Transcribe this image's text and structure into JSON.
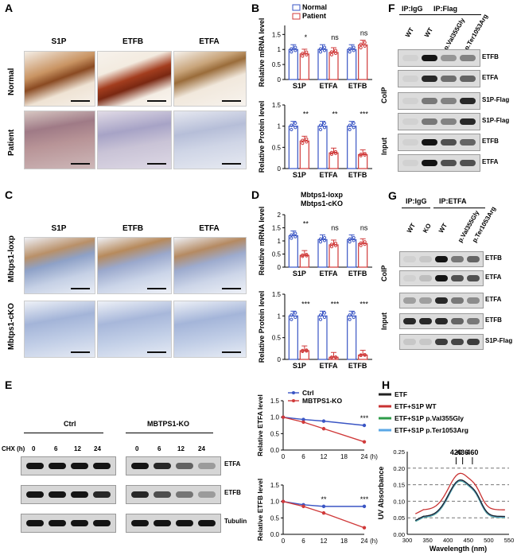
{
  "panels": {
    "A": {
      "label": "A",
      "cols": [
        "S1P",
        "ETFB",
        "ETFA"
      ],
      "rows": [
        "Normal",
        "Patient"
      ]
    },
    "B": {
      "label": "B"
    },
    "C": {
      "label": "C",
      "cols": [
        "S1P",
        "ETFB",
        "ETFA"
      ],
      "rows": [
        "Mbtps1-loxp",
        "Mbtps1-cKO"
      ]
    },
    "D": {
      "label": "D"
    },
    "E": {
      "label": "E",
      "group1": "Ctrl",
      "group2": "MBTPS1-KO",
      "chx": "CHX (h)",
      "times": [
        "0",
        "6",
        "12",
        "24"
      ],
      "bands": [
        "ETFA",
        "ETFB",
        "Tubulin"
      ]
    },
    "F": {
      "label": "F",
      "ip1": "IP:IgG",
      "ip2": "IP:Flag",
      "lanes": [
        "WT",
        "WT",
        "p.Val355Gly",
        "p.Ter1053Arg"
      ],
      "coip": "CoIP",
      "input": "Input",
      "bands": [
        "ETFB",
        "ETFA",
        "S1P-Flag",
        "S1P-Flag",
        "ETFB",
        "ETFA"
      ]
    },
    "G": {
      "label": "G",
      "ip1": "IP:IgG",
      "ip2": "IP:ETFA",
      "lanes": [
        "WT",
        "KO",
        "WT",
        "p.Val355Gly",
        "p.Ter1053Arg"
      ],
      "coip": "CoIP",
      "input": "Input",
      "bands": [
        "ETFB",
        "ETFA",
        "ETFA",
        "ETFB",
        "S1P-Flag"
      ]
    },
    "H": {
      "label": "H"
    }
  },
  "chart_data": [
    {
      "id": "B-mRNA",
      "type": "bar",
      "legend": [
        "Normal",
        "Patient"
      ],
      "ylabel": "Relative mRNA level",
      "categories": [
        "S1P",
        "ETFA",
        "ETFB"
      ],
      "series": [
        {
          "name": "Normal",
          "values": [
            1.0,
            1.0,
            1.0
          ]
        },
        {
          "name": "Patient",
          "values": [
            0.85,
            0.9,
            1.15
          ]
        }
      ],
      "ylim": [
        0,
        1.8
      ],
      "annotations": [
        "*",
        "ns",
        "ns"
      ],
      "colors": {
        "Normal": "#3a55c4",
        "Patient": "#d03a3a"
      }
    },
    {
      "id": "B-protein",
      "type": "bar",
      "ylabel": "Relative Protein level",
      "categories": [
        "S1P",
        "ETFA",
        "ETFB"
      ],
      "series": [
        {
          "name": "Normal",
          "values": [
            1.0,
            1.0,
            1.0
          ]
        },
        {
          "name": "Patient",
          "values": [
            0.65,
            0.37,
            0.33
          ]
        }
      ],
      "ylim": [
        0,
        1.5
      ],
      "annotations": [
        "**",
        "**",
        "***"
      ]
    },
    {
      "id": "D-mRNA",
      "type": "bar",
      "legend": [
        "Mbtps1-loxp",
        "Mbtps1-cKO"
      ],
      "ylabel": "Relative mRNA level",
      "categories": [
        "S1P",
        "ETFA",
        "ETFB"
      ],
      "series": [
        {
          "name": "Mbtps1-loxp",
          "values": [
            1.2,
            1.05,
            1.05
          ]
        },
        {
          "name": "Mbtps1-cKO",
          "values": [
            0.45,
            0.85,
            0.9
          ]
        }
      ],
      "ylim": [
        0,
        2.0
      ],
      "annotations": [
        "**",
        "ns",
        "ns"
      ]
    },
    {
      "id": "D-protein",
      "type": "bar",
      "ylabel": "Relative Protein level",
      "categories": [
        "S1P",
        "ETFA",
        "ETFB"
      ],
      "series": [
        {
          "name": "Mbtps1-loxp",
          "values": [
            1.0,
            1.0,
            1.0
          ]
        },
        {
          "name": "Mbtps1-cKO",
          "values": [
            0.2,
            0.05,
            0.1
          ]
        }
      ],
      "ylim": [
        0,
        1.5
      ],
      "annotations": [
        "***",
        "***",
        "***"
      ]
    },
    {
      "id": "E-ETFA",
      "type": "line",
      "legend": [
        "Ctrl",
        "MBTPS1-KO"
      ],
      "ylabel": "Relative ETFA level",
      "xlabel": "(h)",
      "x": [
        0,
        6,
        12,
        24
      ],
      "series": [
        {
          "name": "Ctrl",
          "values": [
            1.0,
            0.93,
            0.88,
            0.75
          ]
        },
        {
          "name": "MBTPS1-KO",
          "values": [
            1.0,
            0.85,
            0.65,
            0.25
          ]
        }
      ],
      "ylim": [
        0,
        1.5
      ],
      "annotations": [
        "***"
      ]
    },
    {
      "id": "E-ETFB",
      "type": "line",
      "ylabel": "Relative ETFB level",
      "xlabel": "(h)",
      "x": [
        0,
        6,
        12,
        24
      ],
      "series": [
        {
          "name": "Ctrl",
          "values": [
            1.0,
            0.9,
            0.85,
            0.85
          ]
        },
        {
          "name": "MBTPS1-KO",
          "values": [
            1.0,
            0.85,
            0.65,
            0.2
          ]
        }
      ],
      "ylim": [
        0,
        1.5
      ],
      "annotations": [
        "**",
        "***"
      ]
    },
    {
      "id": "H-UV",
      "type": "line",
      "legend": [
        "ETF",
        "ETF+S1P WT",
        "ETF+S1P p.Val355Gly",
        "ETF+S1P p.Ter1053Arg"
      ],
      "xlabel": "Wavelength (nm)",
      "ylabel": "UV Absorbance",
      "x": [
        300,
        350,
        400,
        450,
        500,
        550
      ],
      "xlim": [
        300,
        550
      ],
      "ylim": [
        0.0,
        0.25
      ],
      "peaks": [
        "420",
        "436",
        "460"
      ],
      "colors": {
        "ETF": "#222222",
        "WT": "#c83232",
        "Val355Gly": "#2e9c4a",
        "Ter1053Arg": "#5aa7e6"
      }
    }
  ]
}
